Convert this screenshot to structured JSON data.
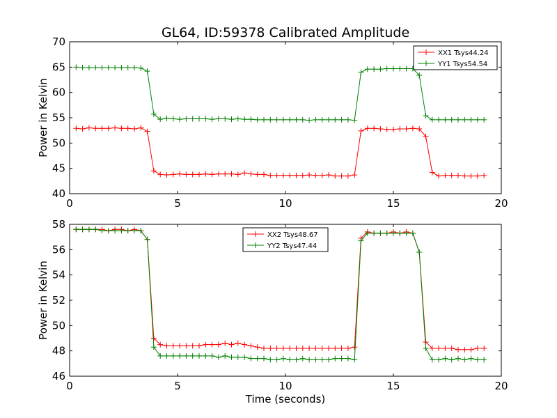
{
  "title": "GL64, ID:59378 Calibrated Amplitude",
  "colors": {
    "xx": "#ff0000",
    "yy": "#008000"
  },
  "chart_data": [
    {
      "type": "line",
      "ylabel": "Power in Kelvin",
      "xlabel": "",
      "xlim": [
        0,
        20
      ],
      "ylim": [
        40,
        70
      ],
      "xticks": [
        0,
        5,
        10,
        15,
        20
      ],
      "yticks": [
        40,
        45,
        50,
        55,
        60,
        65,
        70
      ],
      "grid": false,
      "legend_position": "upper right",
      "x": [
        0.3,
        0.6,
        0.9,
        1.2,
        1.5,
        1.8,
        2.1,
        2.4,
        2.7,
        3.0,
        3.3,
        3.6,
        3.9,
        4.2,
        4.5,
        4.8,
        5.1,
        5.4,
        5.7,
        6.0,
        6.3,
        6.6,
        6.9,
        7.2,
        7.5,
        7.8,
        8.1,
        8.4,
        8.7,
        9.0,
        9.3,
        9.6,
        9.9,
        10.2,
        10.5,
        10.8,
        11.1,
        11.4,
        11.7,
        12.0,
        12.3,
        12.6,
        12.9,
        13.2,
        13.5,
        13.8,
        14.1,
        14.4,
        14.7,
        15.0,
        15.3,
        15.6,
        15.9,
        16.2,
        16.5,
        16.8,
        17.1,
        17.4,
        17.7,
        18.0,
        18.3,
        18.6,
        18.9,
        19.2
      ],
      "series": [
        {
          "name": "XX1 Tsys44.24",
          "color": "#ff0000",
          "values": [
            52.9,
            52.8,
            53.0,
            52.9,
            52.9,
            52.9,
            53.0,
            52.9,
            52.9,
            52.8,
            53.0,
            52.3,
            44.5,
            43.8,
            43.7,
            43.8,
            43.9,
            43.8,
            43.8,
            43.8,
            43.9,
            43.8,
            43.9,
            43.9,
            43.9,
            43.8,
            44.1,
            43.9,
            43.8,
            43.8,
            43.6,
            43.6,
            43.6,
            43.6,
            43.6,
            43.6,
            43.7,
            43.6,
            43.6,
            43.7,
            43.5,
            43.5,
            43.5,
            43.7,
            52.4,
            52.9,
            52.9,
            52.8,
            52.7,
            52.7,
            52.8,
            52.8,
            52.9,
            52.8,
            51.3,
            44.2,
            43.5,
            43.6,
            43.6,
            43.6,
            43.5,
            43.5,
            43.5,
            43.6
          ]
        },
        {
          "name": "YY1 Tsys54.54",
          "color": "#008000",
          "values": [
            65.0,
            64.9,
            64.9,
            64.9,
            64.9,
            64.9,
            64.9,
            64.9,
            64.9,
            64.9,
            64.8,
            64.2,
            55.7,
            54.7,
            54.9,
            54.8,
            54.7,
            54.8,
            54.8,
            54.8,
            54.8,
            54.7,
            54.8,
            54.8,
            54.7,
            54.8,
            54.7,
            54.7,
            54.6,
            54.6,
            54.6,
            54.6,
            54.6,
            54.6,
            54.6,
            54.6,
            54.5,
            54.6,
            54.6,
            54.6,
            54.6,
            54.6,
            54.6,
            54.5,
            64.0,
            64.6,
            64.6,
            64.6,
            64.7,
            64.7,
            64.7,
            64.7,
            64.7,
            63.4,
            55.4,
            54.6,
            54.6,
            54.6,
            54.6,
            54.6,
            54.6,
            54.6,
            54.6,
            54.6
          ]
        }
      ]
    },
    {
      "type": "line",
      "ylabel": "Power in Kelvin",
      "xlabel": "Time (seconds)",
      "xlim": [
        0,
        20
      ],
      "ylim": [
        46,
        58
      ],
      "xticks": [
        0,
        5,
        10,
        15,
        20
      ],
      "yticks": [
        46,
        48,
        50,
        52,
        54,
        56,
        58
      ],
      "grid": false,
      "legend_position": "upper center",
      "x": [
        0.3,
        0.6,
        0.9,
        1.2,
        1.5,
        1.8,
        2.1,
        2.4,
        2.7,
        3.0,
        3.3,
        3.6,
        3.9,
        4.2,
        4.5,
        4.8,
        5.1,
        5.4,
        5.7,
        6.0,
        6.3,
        6.6,
        6.9,
        7.2,
        7.5,
        7.8,
        8.1,
        8.4,
        8.7,
        9.0,
        9.3,
        9.6,
        9.9,
        10.2,
        10.5,
        10.8,
        11.1,
        11.4,
        11.7,
        12.0,
        12.3,
        12.6,
        12.9,
        13.2,
        13.5,
        13.8,
        14.1,
        14.4,
        14.7,
        15.0,
        15.3,
        15.6,
        15.9,
        16.2,
        16.5,
        16.8,
        17.1,
        17.4,
        17.7,
        18.0,
        18.3,
        18.6,
        18.9,
        19.2
      ],
      "series": [
        {
          "name": "XX2 Tsys48.67",
          "color": "#ff0000",
          "values": [
            57.6,
            57.6,
            57.6,
            57.6,
            57.6,
            57.5,
            57.6,
            57.6,
            57.5,
            57.6,
            57.5,
            56.8,
            49.0,
            48.5,
            48.4,
            48.4,
            48.4,
            48.4,
            48.4,
            48.4,
            48.5,
            48.5,
            48.5,
            48.6,
            48.5,
            48.6,
            48.5,
            48.4,
            48.3,
            48.2,
            48.2,
            48.2,
            48.2,
            48.2,
            48.2,
            48.2,
            48.2,
            48.2,
            48.2,
            48.2,
            48.2,
            48.2,
            48.2,
            48.3,
            56.9,
            57.4,
            57.3,
            57.3,
            57.3,
            57.4,
            57.3,
            57.4,
            57.3,
            55.8,
            48.7,
            48.2,
            48.2,
            48.2,
            48.2,
            48.1,
            48.1,
            48.1,
            48.2,
            48.2
          ]
        },
        {
          "name": "YY2 Tsys47.44",
          "color": "#008000",
          "values": [
            57.6,
            57.6,
            57.6,
            57.6,
            57.5,
            57.5,
            57.5,
            57.5,
            57.5,
            57.5,
            57.5,
            56.8,
            48.3,
            47.6,
            47.6,
            47.6,
            47.6,
            47.6,
            47.6,
            47.6,
            47.6,
            47.6,
            47.5,
            47.6,
            47.5,
            47.5,
            47.5,
            47.4,
            47.4,
            47.4,
            47.3,
            47.3,
            47.4,
            47.3,
            47.3,
            47.4,
            47.3,
            47.3,
            47.3,
            47.3,
            47.4,
            47.4,
            47.4,
            47.3,
            56.7,
            57.3,
            57.3,
            57.3,
            57.3,
            57.3,
            57.3,
            57.3,
            57.3,
            55.8,
            48.2,
            47.3,
            47.3,
            47.4,
            47.3,
            47.4,
            47.3,
            47.4,
            47.3,
            47.3
          ]
        }
      ]
    }
  ]
}
